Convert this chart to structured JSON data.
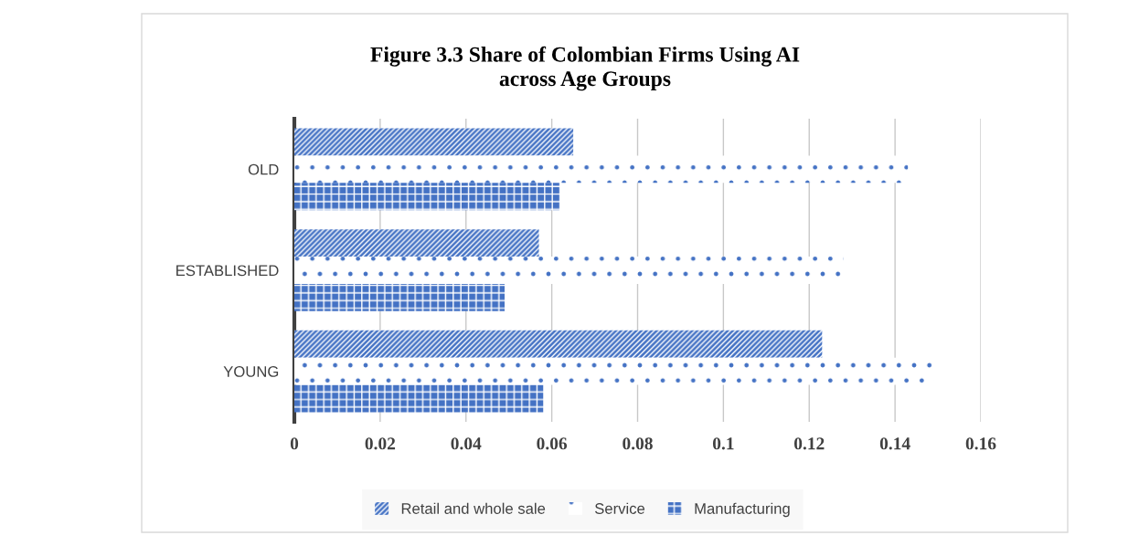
{
  "chart_data": {
    "type": "bar",
    "orientation": "horizontal",
    "title": "Figure 3.3 Share of Colombian Firms Using AI\nacross Age Groups",
    "categories": [
      "OLD",
      "ESTABLISHED",
      "YOUNG"
    ],
    "series": [
      {
        "name": "Retail and whole sale",
        "color": "#4472c4",
        "values": [
          0.065,
          0.057,
          0.123
        ]
      },
      {
        "name": "Service",
        "color": "#ffffff",
        "values": [
          0.143,
          0.128,
          0.149
        ]
      },
      {
        "name": "Manufacturing",
        "color": "#4472c4",
        "values": [
          0.062,
          0.049,
          0.058
        ]
      }
    ],
    "xlim": [
      0,
      0.16
    ],
    "xticks": [
      0,
      0.02,
      0.04,
      0.06,
      0.08,
      0.1,
      0.12,
      0.14,
      0.16
    ],
    "grid": "x",
    "legend": "bottom"
  }
}
